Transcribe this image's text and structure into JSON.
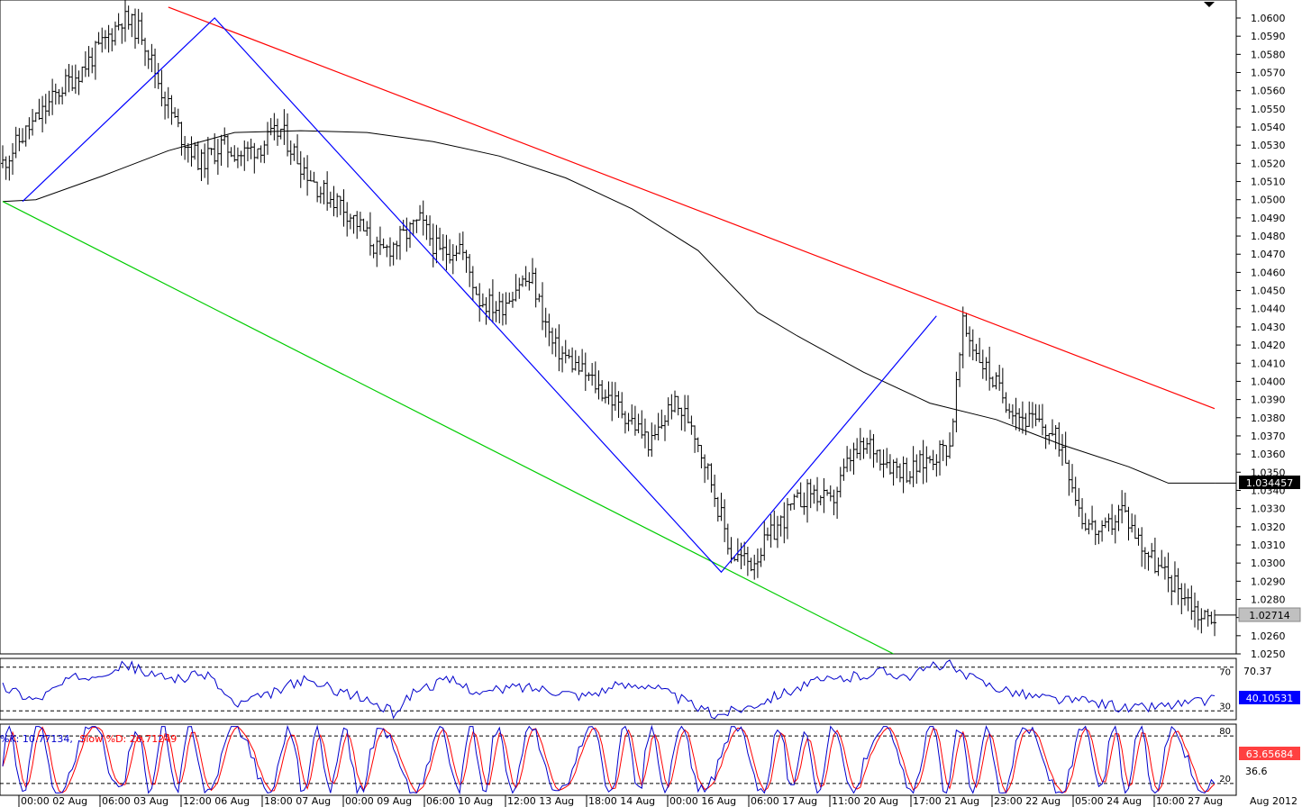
{
  "chart_data": [
    {
      "type": "ohlc-bar",
      "title": "",
      "y_ticks": [
        "1.0600",
        "1.0590",
        "1.0580",
        "1.0570",
        "1.0560",
        "1.0550",
        "1.0540",
        "1.0530",
        "1.0520",
        "1.0510",
        "1.0500",
        "1.0490",
        "1.0480",
        "1.0470",
        "1.0460",
        "1.0450",
        "1.0440",
        "1.0430",
        "1.0420",
        "1.0410",
        "1.0400",
        "1.0390",
        "1.0380",
        "1.0370",
        "1.0360",
        "1.0350",
        "1.0340",
        "1.0330",
        "1.0320",
        "1.0310",
        "1.0300",
        "1.0290",
        "1.0280",
        "1.0270",
        "1.0260",
        "1.0250"
      ],
      "ylim": [
        1.025,
        1.0606
      ],
      "x_ticks": [
        "00:00 02 Aug",
        "06:00 03 Aug",
        "12:00 06 Aug",
        "18:00 07 Aug",
        "00:00 09 Aug",
        "06:00 10 Aug",
        "12:00 13 Aug",
        "18:00 14 Aug",
        "00:00 16 Aug",
        "06:00 17 Aug",
        "11:00 20 Aug",
        "17:00 21 Aug",
        "23:00 22 Aug",
        "05:00 24 Aug",
        "10:00 27 Aug"
      ],
      "x_end_label": "Aug 2012",
      "price_points": [
        [
          0,
          1.052
        ],
        [
          6,
          1.0535
        ],
        [
          12,
          1.0548
        ],
        [
          18,
          1.0562
        ],
        [
          24,
          1.0572
        ],
        [
          30,
          1.0585
        ],
        [
          36,
          1.06
        ],
        [
          42,
          1.0592
        ],
        [
          48,
          1.056
        ],
        [
          54,
          1.0535
        ],
        [
          60,
          1.052
        ],
        [
          66,
          1.053
        ],
        [
          72,
          1.0525
        ],
        [
          78,
          1.053
        ],
        [
          84,
          1.0538
        ],
        [
          90,
          1.052
        ],
        [
          96,
          1.0505
        ],
        [
          102,
          1.0498
        ],
        [
          108,
          1.0485
        ],
        [
          114,
          1.047
        ],
        [
          120,
          1.0478
        ],
        [
          126,
          1.0488
        ],
        [
          132,
          1.047
        ],
        [
          138,
          1.0475
        ],
        [
          144,
          1.0445
        ],
        [
          150,
          1.044
        ],
        [
          156,
          1.0455
        ],
        [
          160,
          1.0455
        ],
        [
          166,
          1.042
        ],
        [
          172,
          1.041
        ],
        [
          178,
          1.04
        ],
        [
          184,
          1.039
        ],
        [
          190,
          1.0378
        ],
        [
          196,
          1.0365
        ],
        [
          202,
          1.0388
        ],
        [
          208,
          1.0378
        ],
        [
          214,
          1.0345
        ],
        [
          220,
          1.0305
        ],
        [
          226,
          1.03
        ],
        [
          232,
          1.0315
        ],
        [
          238,
          1.033
        ],
        [
          244,
          1.034
        ],
        [
          250,
          1.0332
        ],
        [
          256,
          1.0358
        ],
        [
          262,
          1.0365
        ],
        [
          268,
          1.0355
        ],
        [
          274,
          1.035
        ],
        [
          280,
          1.0358
        ],
        [
          286,
          1.0365
        ],
        [
          290,
          1.043
        ],
        [
          296,
          1.041
        ],
        [
          302,
          1.0392
        ],
        [
          308,
          1.038
        ],
        [
          314,
          1.0375
        ],
        [
          320,
          1.0365
        ],
        [
          326,
          1.0325
        ],
        [
          332,
          1.0315
        ],
        [
          338,
          1.033
        ],
        [
          344,
          1.031
        ],
        [
          350,
          1.0295
        ],
        [
          356,
          1.0285
        ],
        [
          362,
          1.027
        ],
        [
          366,
          1.0271
        ]
      ],
      "series": [
        {
          "name": "",
          "color": "#000000",
          "style": "moving-average",
          "points": [
            [
              0,
              1.0499
            ],
            [
              10,
              1.05
            ],
            [
              30,
              1.0513
            ],
            [
              50,
              1.0527
            ],
            [
              70,
              1.0537
            ],
            [
              90,
              1.0538
            ],
            [
              110,
              1.0537
            ],
            [
              130,
              1.0532
            ],
            [
              150,
              1.0524
            ],
            [
              170,
              1.0512
            ],
            [
              190,
              1.0495
            ],
            [
              210,
              1.0472
            ],
            [
              228,
              1.0438
            ],
            [
              240,
              1.0425
            ],
            [
              260,
              1.0405
            ],
            [
              280,
              1.0388
            ],
            [
              300,
              1.0379
            ],
            [
              320,
              1.0365
            ],
            [
              340,
              1.0353
            ],
            [
              352,
              1.0344
            ],
            [
              366,
              1.0344
            ]
          ]
        }
      ],
      "trendlines": [
        {
          "color": "#ff0000",
          "points": [
            [
              50,
              1.0606
            ],
            [
              366,
              1.0385
            ]
          ]
        },
        {
          "color": "#00cc00",
          "points": [
            [
              0,
              1.0499
            ],
            [
              269,
              1.025
            ]
          ]
        },
        {
          "color": "#0000ff",
          "points": [
            [
              6,
              1.0499
            ],
            [
              64,
              1.06
            ],
            [
              217,
              1.0295
            ],
            [
              282,
              1.0436
            ]
          ]
        }
      ],
      "last_price_label": "1.02714",
      "ma_price_label": "1.034457"
    },
    {
      "type": "line",
      "title": "",
      "levels": [
        "70",
        "30"
      ],
      "level_values": [
        70,
        30
      ],
      "ylim": [
        22,
        78
      ],
      "series": [
        {
          "name": "",
          "color": "#0000cc",
          "points": [
            [
              0,
              52
            ],
            [
              10,
              40
            ],
            [
              20,
              58
            ],
            [
              30,
              66
            ],
            [
              38,
              72
            ],
            [
              45,
              62
            ],
            [
              55,
              60
            ],
            [
              62,
              64
            ],
            [
              70,
              35
            ],
            [
              80,
              44
            ],
            [
              90,
              58
            ],
            [
              100,
              50
            ],
            [
              110,
              40
            ],
            [
              118,
              28
            ],
            [
              125,
              50
            ],
            [
              135,
              58
            ],
            [
              145,
              46
            ],
            [
              155,
              52
            ],
            [
              165,
              50
            ],
            [
              175,
              44
            ],
            [
              185,
              52
            ],
            [
              195,
              55
            ],
            [
              205,
              40
            ],
            [
              215,
              26
            ],
            [
              225,
              34
            ],
            [
              235,
              46
            ],
            [
              245,
              56
            ],
            [
              255,
              60
            ],
            [
              265,
              66
            ],
            [
              275,
              62
            ],
            [
              280,
              70
            ],
            [
              285,
              74
            ],
            [
              290,
              62
            ],
            [
              300,
              52
            ],
            [
              310,
              44
            ],
            [
              320,
              40
            ],
            [
              330,
              38
            ],
            [
              340,
              32
            ],
            [
              355,
              36
            ],
            [
              366,
              40
            ]
          ]
        }
      ],
      "value_labels": [
        "70.37",
        "40.10531"
      ]
    },
    {
      "type": "line",
      "title": "",
      "header_parts": [
        "%K: 10.77134,",
        "Slow %D: 26.71249"
      ],
      "levels": [
        "80",
        "20"
      ],
      "level_values": [
        80,
        20
      ],
      "ylim": [
        5,
        95
      ],
      "series": [
        {
          "name": "%K",
          "color": "#0000cc"
        },
        {
          "name": "Slow %D",
          "color": "#ff0000"
        }
      ],
      "extra_labels": [
        "36.6"
      ],
      "value_labels": [
        "63.65684"
      ]
    }
  ]
}
